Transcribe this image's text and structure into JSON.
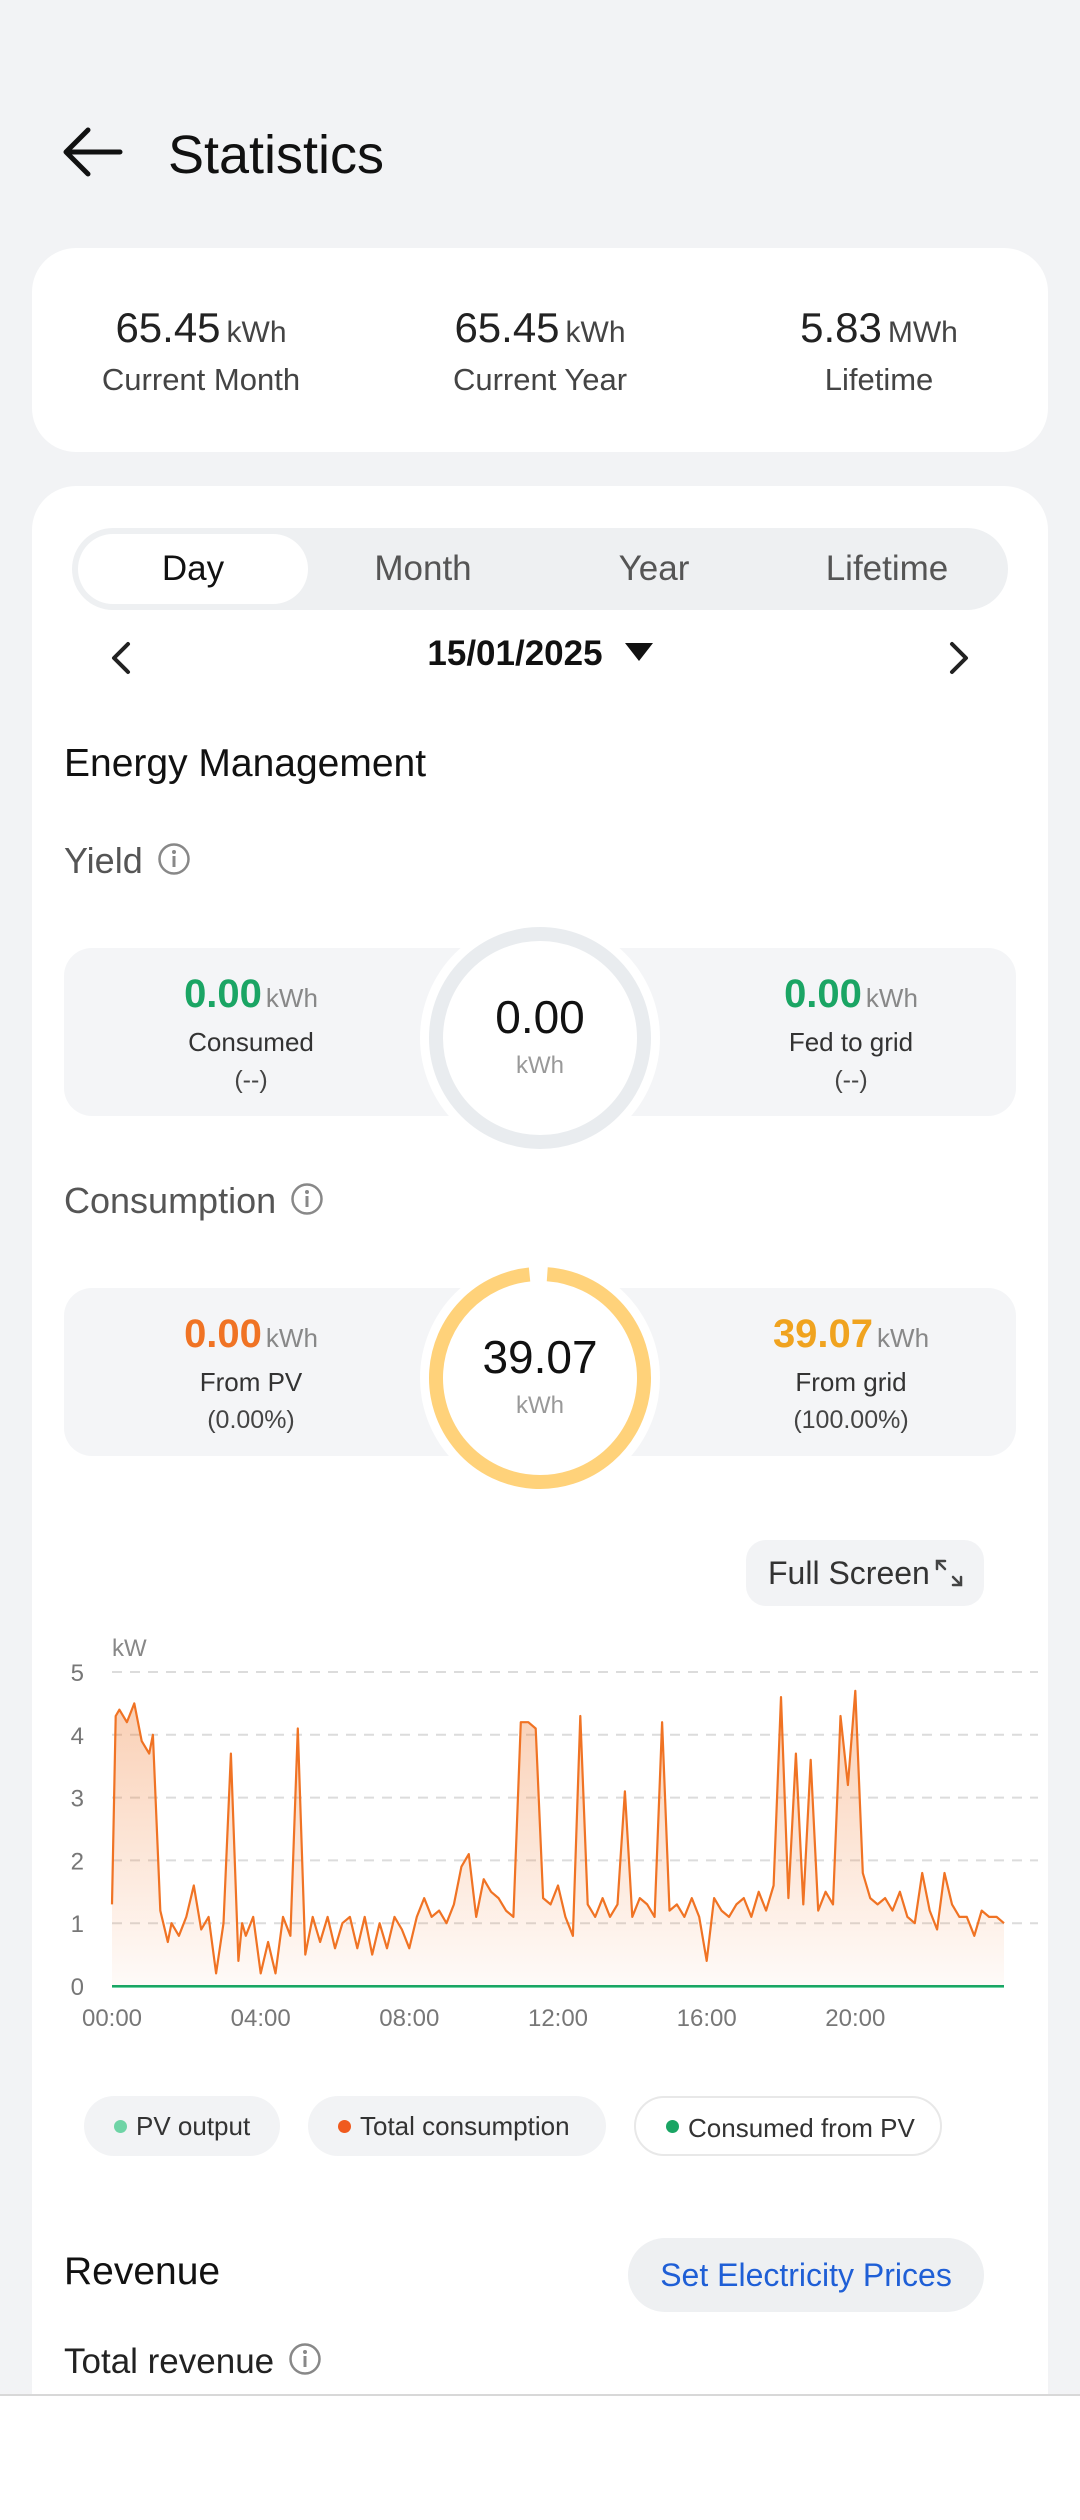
{
  "header": {
    "title": "Statistics"
  },
  "summary": [
    {
      "value": "65.45",
      "unit": "kWh",
      "label": "Current Month"
    },
    {
      "value": "65.45",
      "unit": "kWh",
      "label": "Current Year"
    },
    {
      "value": "5.83",
      "unit": "MWh",
      "label": "Lifetime"
    }
  ],
  "tabs": [
    {
      "label": "Day",
      "active": true
    },
    {
      "label": "Month"
    },
    {
      "label": "Year"
    },
    {
      "label": "Lifetime"
    }
  ],
  "date": "15/01/2025",
  "energy": {
    "title": "Energy Management",
    "yield": {
      "title": "Yield",
      "left_value": "0.00",
      "left_unit": "kWh",
      "left_label": "Consumed",
      "left_sub": "(--)",
      "center_value": "0.00",
      "center_unit": "kWh",
      "right_value": "0.00",
      "right_unit": "kWh",
      "right_label": "Fed to grid",
      "right_sub": "(--)"
    },
    "consumption": {
      "title": "Consumption",
      "left_value": "0.00",
      "left_unit": "kWh",
      "left_label": "From PV",
      "left_sub": "(0.00%)",
      "center_value": "39.07",
      "center_unit": "kWh",
      "right_value": "39.07",
      "right_unit": "kWh",
      "right_label": "From grid",
      "right_sub": "(100.00%)",
      "grid_fraction": 1.0
    }
  },
  "full_screen": "Full Screen",
  "colors": {
    "green": "#1aa564",
    "orange": "#f07324",
    "amber": "#f0a31f",
    "ring_grey": "#e9ecef",
    "ring_amber": "#ffd27a",
    "link": "#1f5fd6"
  },
  "chart_data": {
    "type": "area",
    "ylabel": "kW",
    "ylim": [
      0,
      5
    ],
    "yticks": [
      "0",
      "1",
      "2",
      "3",
      "4",
      "5"
    ],
    "xticks": [
      "00:00",
      "04:00",
      "08:00",
      "12:00",
      "16:00",
      "20:00"
    ],
    "xlim_hours": [
      0,
      24
    ],
    "grid": "horizontal dashed",
    "legend_placement": "bottom",
    "series": [
      {
        "name": "PV output",
        "color": "#6fd4a6",
        "x": [
          0,
          24
        ],
        "y": [
          0,
          0
        ]
      },
      {
        "name": "Total consumption",
        "color": "#f07324",
        "x": [
          0.0,
          0.1,
          0.2,
          0.4,
          0.6,
          0.8,
          1.0,
          1.1,
          1.2,
          1.3,
          1.5,
          1.6,
          1.8,
          2.0,
          2.2,
          2.4,
          2.6,
          2.8,
          3.0,
          3.2,
          3.4,
          3.5,
          3.6,
          3.8,
          4.0,
          4.2,
          4.4,
          4.6,
          4.8,
          5.0,
          5.2,
          5.4,
          5.6,
          5.8,
          6.0,
          6.2,
          6.4,
          6.6,
          6.8,
          7.0,
          7.2,
          7.4,
          7.6,
          7.8,
          8.0,
          8.2,
          8.4,
          8.6,
          8.8,
          9.0,
          9.2,
          9.4,
          9.6,
          9.8,
          10.0,
          10.2,
          10.4,
          10.6,
          10.8,
          11.0,
          11.2,
          11.4,
          11.6,
          11.8,
          12.0,
          12.2,
          12.4,
          12.6,
          12.8,
          13.0,
          13.2,
          13.4,
          13.6,
          13.8,
          14.0,
          14.2,
          14.4,
          14.6,
          14.8,
          15.0,
          15.2,
          15.4,
          15.6,
          15.8,
          16.0,
          16.2,
          16.4,
          16.6,
          16.8,
          17.0,
          17.2,
          17.4,
          17.6,
          17.8,
          18.0,
          18.2,
          18.4,
          18.6,
          18.8,
          19.0,
          19.2,
          19.4,
          19.6,
          19.8,
          20.0,
          20.2,
          20.4,
          20.6,
          20.8,
          21.0,
          21.2,
          21.4,
          21.6,
          21.8,
          22.0,
          22.2,
          22.4,
          22.6,
          22.8,
          23.0,
          23.2,
          23.4,
          23.6,
          23.8,
          24.0
        ],
        "y": [
          1.3,
          4.3,
          4.4,
          4.2,
          4.5,
          3.9,
          3.7,
          4.0,
          2.6,
          1.2,
          0.7,
          1.0,
          0.8,
          1.1,
          1.6,
          0.9,
          1.1,
          0.2,
          1.0,
          3.7,
          0.4,
          1.0,
          0.8,
          1.1,
          0.2,
          0.7,
          0.2,
          1.1,
          0.8,
          4.1,
          0.5,
          1.1,
          0.7,
          1.1,
          0.6,
          1.0,
          1.1,
          0.6,
          1.1,
          0.5,
          1.0,
          0.6,
          1.1,
          0.9,
          0.6,
          1.1,
          1.4,
          1.1,
          1.2,
          1.0,
          1.3,
          1.9,
          2.1,
          1.1,
          1.7,
          1.5,
          1.4,
          1.2,
          1.1,
          4.2,
          4.2,
          4.1,
          1.4,
          1.3,
          1.6,
          1.1,
          0.8,
          4.3,
          1.3,
          1.1,
          1.4,
          1.1,
          1.3,
          3.1,
          1.1,
          1.4,
          1.3,
          1.1,
          4.2,
          1.2,
          1.3,
          1.1,
          1.4,
          1.1,
          0.4,
          1.4,
          1.2,
          1.1,
          1.3,
          1.4,
          1.1,
          1.5,
          1.2,
          1.6,
          4.6,
          1.4,
          3.7,
          1.3,
          3.6,
          1.2,
          1.5,
          1.3,
          4.3,
          3.2,
          4.7,
          1.8,
          1.4,
          1.3,
          1.4,
          1.2,
          1.5,
          1.1,
          1.0,
          1.8,
          1.2,
          0.9,
          1.8,
          1.3,
          1.1,
          1.1,
          0.8,
          1.2,
          1.1,
          1.1,
          1.0
        ]
      },
      {
        "name": "Consumed from PV",
        "color": "#1aa564",
        "x": [
          0,
          24
        ],
        "y": [
          0,
          0
        ]
      }
    ]
  },
  "revenue": {
    "title": "Revenue",
    "button": "Set Electricity Prices",
    "total_label": "Total revenue"
  }
}
